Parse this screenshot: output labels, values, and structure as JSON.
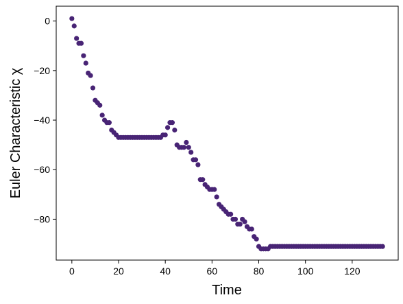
{
  "chart_data": {
    "type": "scatter",
    "xlabel": "Time",
    "ylabel": "Euler Characteristic χ",
    "xlim": [
      -6.7,
      139.7
    ],
    "ylim": [
      -96.5,
      6
    ],
    "x_ticks": [
      0,
      20,
      40,
      60,
      80,
      100,
      120
    ],
    "x_tick_labels": [
      "0",
      "20",
      "40",
      "60",
      "80",
      "100",
      "120"
    ],
    "y_ticks": [
      0,
      -20,
      -40,
      -60,
      -80
    ],
    "y_tick_labels": [
      "0",
      "−20",
      "−40",
      "−60",
      "−80"
    ],
    "grid": false,
    "marker_color": "#482475",
    "series": [
      {
        "x": [
          0,
          1,
          2,
          3,
          4,
          5,
          6,
          7,
          8,
          9,
          10,
          11,
          12,
          13,
          14,
          15,
          16,
          17,
          18,
          19,
          20,
          21,
          22,
          23,
          24,
          25,
          26,
          27,
          28,
          29,
          30,
          31,
          32,
          33,
          34,
          35,
          36,
          37,
          38,
          39,
          40,
          41,
          42,
          43,
          44,
          45,
          46,
          47,
          48,
          49,
          50,
          51,
          52,
          53,
          54,
          55,
          56,
          57,
          58,
          59,
          60,
          61,
          62,
          63,
          64,
          65,
          66,
          67,
          68,
          69,
          70,
          71,
          72,
          73,
          74,
          75,
          76,
          77,
          78,
          79,
          80,
          81,
          82,
          83,
          84,
          85,
          86,
          87,
          88,
          89,
          90,
          91,
          92,
          93,
          94,
          95,
          96,
          97,
          98,
          99,
          100,
          101,
          102,
          103,
          104,
          105,
          106,
          107,
          108,
          109,
          110,
          111,
          112,
          113,
          114,
          115,
          116,
          117,
          118,
          119,
          120,
          121,
          122,
          123,
          124,
          125,
          126,
          127,
          128,
          129,
          130,
          131,
          132,
          133
        ],
        "y": [
          1,
          -2,
          -7,
          -9,
          -9,
          -14,
          -17,
          -21,
          -22,
          -27,
          -32,
          -33,
          -34,
          -38,
          -40,
          -41,
          -41,
          -44,
          -45,
          -46,
          -47,
          -47,
          -47,
          -47,
          -47,
          -47,
          -47,
          -47,
          -47,
          -47,
          -47,
          -47,
          -47,
          -47,
          -47,
          -47,
          -47,
          -47,
          -47,
          -46,
          -46,
          -43,
          -41,
          -41,
          -44,
          -50,
          -51,
          -51,
          -51,
          -49,
          -51,
          -53,
          -56,
          -56,
          -58,
          -64,
          -64,
          -66,
          -67,
          -68,
          -68,
          -68,
          -71,
          -74,
          -75,
          -76,
          -77,
          -78,
          -78,
          -80,
          -80,
          -82,
          -82,
          -80,
          -81,
          -83,
          -84,
          -84,
          -87,
          -88,
          -91,
          -92,
          -92,
          -92,
          -92,
          -91,
          -91,
          -91,
          -91,
          -91,
          -91,
          -91,
          -91,
          -91,
          -91,
          -91,
          -91,
          -91,
          -91,
          -91,
          -91,
          -91,
          -91,
          -91,
          -91,
          -91,
          -91,
          -91,
          -91,
          -91,
          -91,
          -91,
          -91,
          -91,
          -91,
          -91,
          -91,
          -91,
          -91,
          -91,
          -91,
          -91,
          -91,
          -91,
          -91,
          -91,
          -91,
          -91,
          -91,
          -91,
          -91,
          -91,
          -91,
          -91
        ]
      }
    ]
  }
}
